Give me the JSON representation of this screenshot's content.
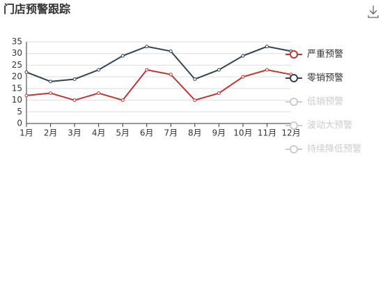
{
  "chart_data": {
    "type": "line",
    "title": "门店预警跟踪",
    "categories": [
      "1月",
      "2月",
      "3月",
      "4月",
      "5月",
      "6月",
      "7月",
      "8月",
      "9月",
      "10月",
      "11月",
      "12月"
    ],
    "series": [
      {
        "name": "严重预警",
        "color": "#c23531",
        "selected": true,
        "values": [
          12,
          13,
          10,
          13,
          10,
          23,
          21,
          10,
          13,
          20,
          23,
          21
        ]
      },
      {
        "name": "零销预警",
        "color": "#2f4554",
        "selected": true,
        "values": [
          22,
          18,
          19,
          23,
          29,
          33,
          31,
          19,
          23,
          29,
          33,
          31
        ]
      },
      {
        "name": "低销预警",
        "color": "#61a0a8",
        "selected": false
      },
      {
        "name": "波动大预警",
        "color": "#d48265",
        "selected": false
      },
      {
        "name": "持续降低预警",
        "color": "#91c7ae",
        "selected": false
      }
    ],
    "ylim": [
      0,
      35
    ],
    "yticks": [
      0,
      5,
      10,
      15,
      20,
      25,
      30,
      35
    ],
    "grid": true,
    "legend": "right"
  }
}
